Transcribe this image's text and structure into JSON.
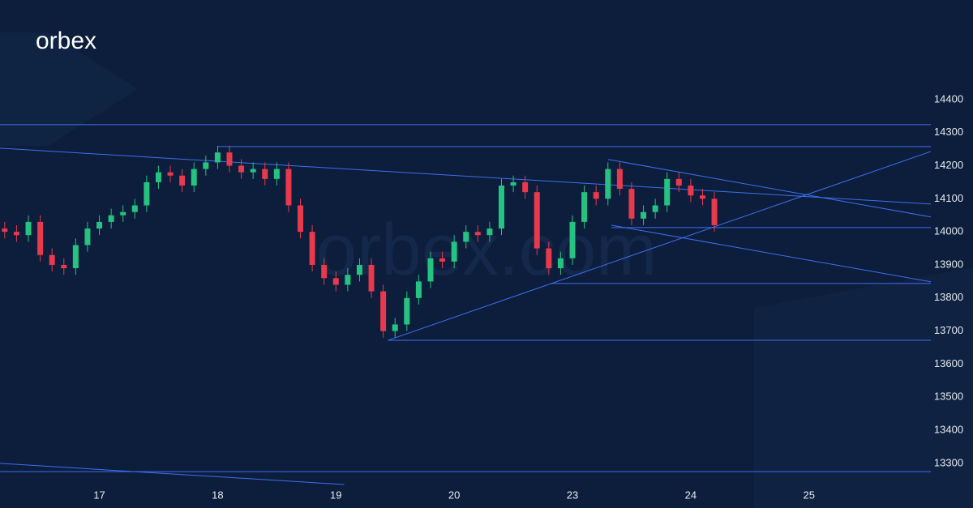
{
  "logo": "orbex",
  "watermark": "orbex.com",
  "chart_data": {
    "type": "candlestick",
    "x": [
      0.2,
      0.3,
      0.4,
      0.5,
      0.6,
      0.7,
      0.8,
      0.9,
      1.0,
      1.1,
      1.2,
      1.3,
      1.4,
      1.5,
      1.6,
      1.7,
      1.8,
      1.9,
      2.0,
      2.1,
      2.2,
      2.3,
      2.4,
      2.5,
      2.6,
      2.7,
      2.8,
      2.9,
      3.0,
      3.1,
      3.2,
      3.3,
      3.4,
      3.5,
      3.6,
      3.7,
      3.8,
      3.9,
      4.0,
      4.1,
      4.2,
      4.3,
      4.4,
      4.5,
      4.6,
      4.7,
      4.8,
      4.9,
      5.0,
      5.1,
      5.2,
      5.3,
      5.4,
      5.5,
      5.6,
      5.7,
      5.8,
      5.9,
      6.0,
      6.1,
      6.2
    ],
    "open": [
      14010,
      14000,
      13990,
      14030,
      13930,
      13900,
      13890,
      13960,
      14010,
      14030,
      14050,
      14060,
      14080,
      14150,
      14180,
      14170,
      14140,
      14190,
      14210,
      14240,
      14200,
      14180,
      14190,
      14160,
      14190,
      14080,
      14000,
      13900,
      13860,
      13840,
      13870,
      13900,
      13820,
      13700,
      13720,
      13800,
      13850,
      13920,
      13910,
      13970,
      14000,
      13990,
      14010,
      14140,
      14150,
      14120,
      13950,
      13890,
      13920,
      14030,
      14120,
      14100,
      14190,
      14130,
      14040,
      14060,
      14080,
      14160,
      14140,
      14110,
      14100
    ],
    "high": [
      14030,
      14020,
      14050,
      14050,
      13950,
      13920,
      13980,
      14030,
      14050,
      14070,
      14080,
      14100,
      14170,
      14200,
      14200,
      14190,
      14210,
      14230,
      14260,
      14260,
      14220,
      14210,
      14210,
      14210,
      14210,
      14100,
      14020,
      13920,
      13880,
      13890,
      13920,
      13920,
      13840,
      13740,
      13820,
      13870,
      13940,
      13940,
      13990,
      14020,
      14020,
      14030,
      14160,
      14170,
      14170,
      14140,
      13970,
      13940,
      14050,
      14140,
      14140,
      14210,
      14210,
      14150,
      14080,
      14100,
      14180,
      14180,
      14160,
      14130,
      14120
    ],
    "low": [
      13980,
      13970,
      13970,
      13910,
      13880,
      13870,
      13870,
      13940,
      13990,
      14010,
      14030,
      14040,
      14060,
      14130,
      14150,
      14120,
      14120,
      14170,
      14190,
      14180,
      14160,
      14160,
      14140,
      14140,
      14060,
      13980,
      13880,
      13840,
      13820,
      13820,
      13850,
      13800,
      13680,
      13680,
      13700,
      13780,
      13830,
      13890,
      13890,
      13950,
      13970,
      13970,
      13990,
      14120,
      14100,
      13930,
      13870,
      13870,
      13900,
      14010,
      14080,
      14080,
      14110,
      14020,
      14020,
      14040,
      14060,
      14120,
      14090,
      14080,
      14000
    ],
    "close": [
      14000,
      13990,
      14030,
      13930,
      13900,
      13890,
      13960,
      14010,
      14030,
      14050,
      14060,
      14080,
      14150,
      14180,
      14170,
      14140,
      14190,
      14210,
      14240,
      14200,
      14180,
      14190,
      14160,
      14190,
      14080,
      14000,
      13900,
      13860,
      13840,
      13870,
      13900,
      13820,
      13700,
      13720,
      13800,
      13850,
      13920,
      13910,
      13970,
      14000,
      13990,
      14010,
      14140,
      14150,
      14120,
      13950,
      13890,
      13920,
      14030,
      14120,
      14100,
      14190,
      14130,
      14040,
      14060,
      14080,
      14160,
      14140,
      14110,
      14100,
      14020
    ],
    "up_color": "#26c281",
    "down_color": "#e8394d",
    "line_color": "#3f6ff0",
    "lines": [
      {
        "x": [
          0.16,
          8.03
        ],
        "y": [
          14324,
          14324
        ]
      },
      {
        "x": [
          2.0,
          8.03
        ],
        "y": [
          14258,
          14258
        ]
      },
      {
        "x": [
          5.33,
          8.03
        ],
        "y": [
          14013,
          14013
        ]
      },
      {
        "x": [
          4.82,
          8.03
        ],
        "y": [
          13844,
          13844
        ]
      },
      {
        "x": [
          3.44,
          8.03
        ],
        "y": [
          13672,
          13672
        ]
      },
      {
        "x": [
          0.16,
          8.03
        ],
        "y": [
          13275,
          13275
        ]
      },
      {
        "x": [
          0.16,
          8.03
        ],
        "y": [
          14253,
          14084
        ]
      },
      {
        "x": [
          3.44,
          8.03
        ],
        "y": [
          13672,
          14243
        ]
      },
      {
        "x": [
          5.3,
          8.03
        ],
        "y": [
          14219,
          14045
        ]
      },
      {
        "x": [
          5.33,
          8.03
        ],
        "y": [
          14020,
          13849
        ]
      },
      {
        "x": [
          0.16,
          3.07
        ],
        "y": [
          13300,
          13236
        ]
      }
    ],
    "xlim": [
      0.16,
      8.03
    ],
    "xticks": [
      {
        "value": 1,
        "label": "17"
      },
      {
        "value": 2,
        "label": "18"
      },
      {
        "value": 3,
        "label": "19"
      },
      {
        "value": 4,
        "label": "20"
      },
      {
        "value": 5,
        "label": "23"
      },
      {
        "value": 6,
        "label": "24"
      },
      {
        "value": 7,
        "label": "25"
      }
    ],
    "ylim": [
      13165,
      14701
    ],
    "yticks": [
      13300,
      13400,
      13500,
      13600,
      13700,
      13800,
      13900,
      14000,
      14100,
      14200,
      14300,
      14400
    ]
  }
}
